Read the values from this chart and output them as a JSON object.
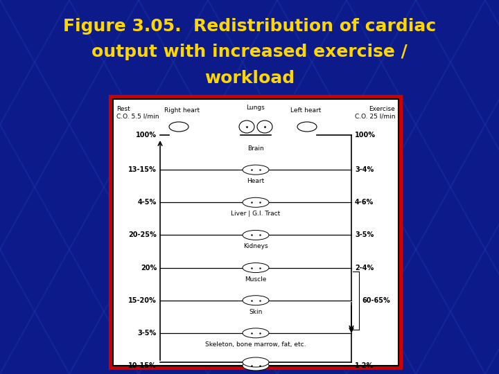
{
  "title_line1": "Figure 3.05.  Redistribution of cardiac",
  "title_line2": "output with increased exercise /",
  "title_line3": "workload",
  "title_color": "#FFD700",
  "title_fontsize": 18,
  "background_color": "#0d1b8a",
  "diagram_border_color": "#cc0000",
  "rest_label": "Rest\nC.O. 5.5 l/min",
  "exercise_label": "Exercise\nC.O. 25 l/min",
  "right_heart_label": "Right heart",
  "left_heart_label": "Left heart",
  "lungs_label": "Lungs",
  "organ_rows": [
    {
      "label": "Brain",
      "rest": "13-15%",
      "exer": "3-4%",
      "has_brace": false
    },
    {
      "label": "Heart",
      "rest": "4-5%",
      "exer": "4-6%",
      "has_brace": false
    },
    {
      "label": "Liver | G.I. Tract",
      "rest": "20-25%",
      "exer": "3-5%",
      "has_brace": false
    },
    {
      "label": "Kidneys",
      "rest": "20%",
      "exer": "2-4%",
      "has_brace": false
    },
    {
      "label": "Muscle",
      "rest": "15-20%",
      "exer": "",
      "has_brace": true
    },
    {
      "label": "Skin",
      "rest": "3-5%",
      "exer": "",
      "has_brace": true
    },
    {
      "label": "Skeleton, bone marrow, fat, etc.",
      "rest": "10-15%",
      "exer": "1-2%",
      "has_brace": false
    }
  ],
  "brace_label": "60-65%"
}
